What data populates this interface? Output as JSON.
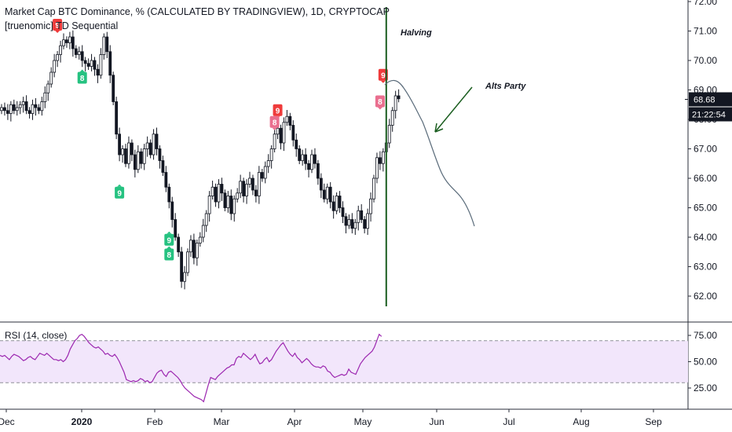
{
  "header": {
    "title": "Market Cap BTC Dominance, % (CALCULATED BY TRADINGVIEW), 1D, CRYPTOCAP",
    "indicator": "[truenomic] TD Sequential"
  },
  "rsi": {
    "label": "RSI (14, close)",
    "upper": 70,
    "lower": 30,
    "ticks": [
      "75.00",
      "50.00",
      "25.00"
    ],
    "values": [
      56,
      55,
      56,
      54,
      52,
      55,
      57,
      56,
      55,
      53,
      51,
      52,
      54,
      55,
      53,
      52,
      55,
      58,
      57,
      56,
      58,
      56,
      54,
      52,
      52,
      51,
      52,
      50,
      52,
      56,
      62,
      66,
      70,
      72,
      75,
      76,
      74,
      71,
      68,
      66,
      64,
      63,
      64,
      62,
      60,
      57,
      58,
      56,
      55,
      57,
      54,
      50,
      45,
      40,
      33,
      32,
      31,
      32,
      31,
      32,
      34,
      33,
      31,
      32,
      30,
      31,
      35,
      39,
      41,
      42,
      38,
      36,
      40,
      41,
      39,
      37,
      35,
      32,
      28,
      25,
      23,
      21,
      19,
      17,
      16,
      15,
      14,
      12,
      20,
      28,
      35,
      34,
      33,
      36,
      38,
      40,
      42,
      44,
      45,
      47,
      47,
      53,
      55,
      54,
      58,
      56,
      54,
      52,
      54,
      57,
      52,
      48,
      49,
      52,
      54,
      50,
      52,
      56,
      60,
      63,
      66,
      68,
      64,
      60,
      57,
      55,
      58,
      54,
      52,
      49,
      51,
      53,
      51,
      48,
      46,
      45,
      45,
      44,
      46,
      45,
      41,
      40,
      37,
      35,
      36,
      37,
      38,
      37,
      38,
      43,
      40,
      39,
      38,
      43,
      48,
      51,
      54,
      56,
      58,
      60,
      64,
      70,
      76,
      74
    ]
  },
  "chart_data": {
    "type": "candlestick",
    "title": "Market Cap BTC Dominance, % (CALCULATED BY TRADINGVIEW), 1D, CRYPTOCAP",
    "x_ticks": [
      "Dec",
      "2020",
      "Feb",
      "Mar",
      "Apr",
      "May",
      "Jun",
      "Jul",
      "Aug",
      "Sep"
    ],
    "y_ticks": [
      "72.00",
      "71.00",
      "70.00",
      "69.00",
      "68.00",
      "67.00",
      "66.00",
      "65.00",
      "64.00",
      "63.00",
      "62.00"
    ],
    "ylim": [
      61.6,
      72.1
    ],
    "last_price": "68.68",
    "countdown": "21:22:54",
    "close": [
      68.4,
      68.3,
      68.2,
      68.5,
      68.3,
      68.4,
      68.5,
      68.6,
      68.3,
      68.2,
      68.5,
      68.4,
      68.3,
      68.6,
      68.9,
      69.2,
      69.6,
      70.0,
      70.2,
      70.5,
      70.7,
      70.6,
      70.8,
      70.4,
      70.2,
      70.3,
      70.0,
      69.9,
      69.8,
      70.0,
      69.7,
      69.5,
      70.2,
      70.8,
      70.3,
      69.5,
      68.6,
      67.5,
      66.8,
      67.0,
      66.5,
      67.2,
      66.8,
      66.3,
      66.9,
      66.5,
      67.0,
      67.2,
      66.8,
      67.5,
      67.0,
      66.6,
      66.2,
      65.7,
      65.2,
      64.6,
      64.0,
      63.5,
      62.5,
      62.8,
      63.5,
      63.9,
      63.3,
      63.8,
      64.0,
      64.4,
      64.8,
      65.4,
      65.7,
      65.2,
      65.8,
      65.5,
      65.0,
      65.4,
      64.8,
      65.3,
      65.5,
      65.9,
      65.4,
      65.8,
      66.0,
      65.6,
      65.4,
      66.2,
      66.0,
      66.4,
      66.6,
      67.0,
      67.5,
      67.7,
      67.2,
      67.9,
      68.1,
      67.8,
      67.3,
      67.0,
      66.6,
      66.8,
      66.5,
      66.3,
      66.8,
      66.5,
      66.0,
      65.6,
      65.3,
      65.7,
      65.2,
      64.9,
      65.4,
      65.0,
      64.7,
      64.4,
      64.6,
      64.3,
      64.5,
      64.9,
      64.6,
      64.3,
      64.8,
      65.3,
      66.0,
      66.7,
      66.5,
      66.9,
      67.2,
      67.8,
      68.3,
      68.8,
      68.7
    ],
    "halving_index": 124,
    "projection_points": [
      [
        69.1,
        0
      ],
      [
        69.0,
        3
      ],
      [
        68.6,
        6
      ],
      [
        67.8,
        9
      ],
      [
        67.1,
        12
      ],
      [
        66.3,
        15
      ],
      [
        65.7,
        18
      ],
      [
        65.2,
        21
      ],
      [
        64.9,
        24
      ],
      [
        64.4,
        27
      ]
    ],
    "signals": [
      {
        "label": "9",
        "type": "sell",
        "index": 18,
        "value": 71.2
      },
      {
        "label": "8",
        "type": "buy",
        "index": 26,
        "value": 69.4
      },
      {
        "label": "9",
        "type": "buy",
        "index": 38,
        "value": 65.5
      },
      {
        "label": "9",
        "type": "buy",
        "index": 54,
        "value": 63.9
      },
      {
        "label": "8",
        "type": "buy",
        "index": 54,
        "value": 63.4
      },
      {
        "label": "9",
        "type": "sell",
        "index": 89,
        "value": 68.3
      },
      {
        "label": "8",
        "type": "sell-light",
        "index": 88,
        "value": 67.9
      },
      {
        "label": "9",
        "type": "sell",
        "index": 123,
        "value": 69.5
      },
      {
        "label": "8",
        "type": "sell-light",
        "index": 122,
        "value": 68.6
      }
    ],
    "annotations": [
      "Halving",
      "Alts Party"
    ],
    "colors": {
      "candle": "#131722",
      "buy": "#26c281",
      "sell": "#ef3b3b",
      "sell_light": "#ea6f8f",
      "rsi_line": "#9c27b0",
      "rsi_band": "#f2e6fb",
      "halving_line": "#1b5e20",
      "projection": "#5a6b7a",
      "price_tag": "#131722"
    }
  }
}
